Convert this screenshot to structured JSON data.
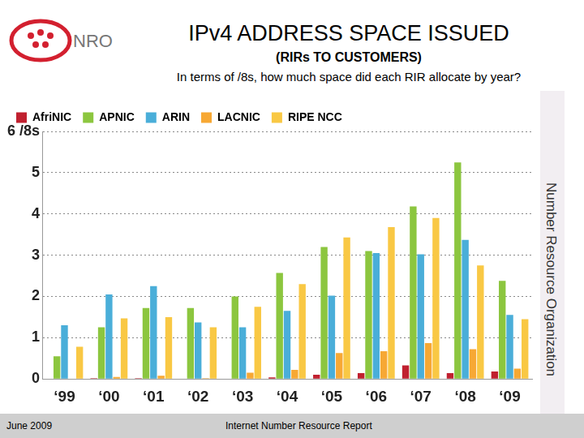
{
  "chart_data": {
    "type": "bar",
    "title": "IPv4 ADDRESS SPACE ISSUED",
    "subtitle": [
      "(RIRs TO CUSTOMERS)",
      "In terms of /8s, how much space did each RIR allocate by year?"
    ],
    "annotations": [
      "NRO",
      "Number Resource Organization",
      "June 2009",
      "Internet Number Resource Report"
    ],
    "categories": [
      "‘99",
      "‘00",
      "‘01",
      "‘02",
      "‘03",
      "‘04",
      "‘05",
      "‘06",
      "‘07",
      "‘08",
      "‘09"
    ],
    "series": [
      {
        "name": "AfriNIC",
        "color": "#c0202f",
        "values": [
          0,
          0.02,
          0.02,
          0.01,
          0.01,
          0.04,
          0.1,
          0.14,
          0.33,
          0.14,
          0.18
        ]
      },
      {
        "name": "APNIC",
        "color": "#8cc63f",
        "values": [
          0.55,
          1.25,
          1.72,
          1.72,
          2.0,
          2.57,
          3.2,
          3.1,
          4.18,
          5.25,
          2.38
        ]
      },
      {
        "name": "ARIN",
        "color": "#4aaed9",
        "values": [
          1.3,
          2.05,
          2.25,
          1.37,
          1.25,
          1.65,
          2.02,
          3.05,
          3.02,
          3.37,
          1.55
        ]
      },
      {
        "name": "LACNIC",
        "color": "#f7a834",
        "values": [
          0,
          0.05,
          0.08,
          0.02,
          0.15,
          0.22,
          0.63,
          0.67,
          0.87,
          0.72,
          0.25
        ]
      },
      {
        "name": "RIPE NCC",
        "color": "#f9c844",
        "values": [
          0.78,
          1.47,
          1.5,
          1.25,
          1.75,
          2.3,
          3.43,
          3.68,
          3.9,
          2.75,
          1.45
        ]
      }
    ],
    "ylim": [
      0,
      6
    ],
    "yticks": [
      0,
      1,
      2,
      3,
      4,
      5,
      {
        "value": 6,
        "label": "6 /8s"
      }
    ],
    "grid": true,
    "legend": "top"
  }
}
